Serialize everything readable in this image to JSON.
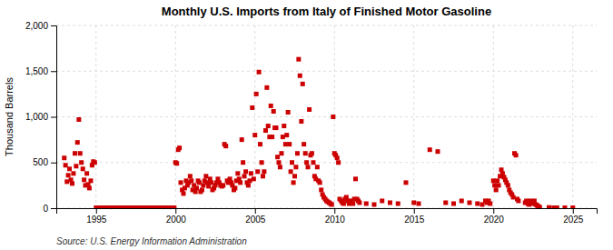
{
  "chart_data": {
    "type": "scatter",
    "title": "Monthly U.S. Imports from Italy of Finished Motor Gasoline",
    "y_label": "Thousand Barrels",
    "annotations": [
      "Source: U.S. Energy Information Administration"
    ],
    "color": "#cc0000",
    "marker": "square",
    "grid": true,
    "xlim": [
      1992.5,
      2026.5
    ],
    "ylim": [
      0,
      2000
    ],
    "xticks": [
      1995,
      2000,
      2005,
      2010,
      2015,
      2020,
      2025
    ],
    "yticks": [
      0,
      500,
      {
        "value": 1000,
        "label": "1,000"
      },
      {
        "value": 1500,
        "label": "1,500"
      },
      {
        "value": 2000,
        "label": "2,000"
      }
    ],
    "x": [
      1993.0,
      1993.08,
      1993.17,
      1993.25,
      1993.33,
      1993.42,
      1993.5,
      1993.58,
      1993.67,
      1993.75,
      1993.83,
      1993.92,
      1994.0,
      1994.08,
      1994.17,
      1994.25,
      1994.33,
      1994.42,
      1994.5,
      1994.58,
      1994.67,
      1994.75,
      1994.83,
      1994.92,
      1995.0,
      1995.08,
      1995.17,
      1995.25,
      1995.33,
      1995.42,
      1995.5,
      1995.58,
      1995.67,
      1995.75,
      1995.83,
      1995.92,
      1996.0,
      1996.08,
      1996.17,
      1996.25,
      1996.33,
      1996.42,
      1996.5,
      1996.58,
      1996.67,
      1996.75,
      1996.83,
      1996.92,
      1997.0,
      1997.08,
      1997.17,
      1997.25,
      1997.33,
      1997.42,
      1997.5,
      1997.58,
      1997.67,
      1997.75,
      1997.83,
      1997.92,
      1998.0,
      1998.08,
      1998.17,
      1998.25,
      1998.33,
      1998.42,
      1998.5,
      1998.58,
      1998.67,
      1998.75,
      1998.83,
      1998.92,
      1999.0,
      1999.08,
      1999.17,
      1999.25,
      1999.33,
      1999.42,
      1999.5,
      1999.58,
      1999.67,
      1999.75,
      1999.83,
      1999.92,
      2000.0,
      2000.08,
      2000.17,
      2000.25,
      2000.33,
      2000.42,
      2000.5,
      2000.58,
      2000.67,
      2000.75,
      2000.83,
      2000.92,
      2001.0,
      2001.08,
      2001.17,
      2001.25,
      2001.33,
      2001.42,
      2001.5,
      2001.58,
      2001.67,
      2001.75,
      2001.83,
      2001.92,
      2002.0,
      2002.08,
      2002.17,
      2002.25,
      2002.33,
      2002.42,
      2002.5,
      2002.58,
      2002.67,
      2002.75,
      2002.83,
      2002.92,
      2003.0,
      2003.08,
      2003.17,
      2003.25,
      2003.33,
      2003.42,
      2003.5,
      2003.58,
      2003.67,
      2003.75,
      2003.83,
      2003.92,
      2004.0,
      2004.08,
      2004.17,
      2004.25,
      2004.33,
      2004.42,
      2004.5,
      2004.58,
      2004.67,
      2004.75,
      2004.83,
      2004.92,
      2005.0,
      2005.08,
      2005.17,
      2005.25,
      2005.33,
      2005.42,
      2005.5,
      2005.58,
      2005.67,
      2005.75,
      2005.83,
      2005.92,
      2006.0,
      2006.08,
      2006.17,
      2006.25,
      2006.33,
      2006.42,
      2006.5,
      2006.58,
      2006.67,
      2006.75,
      2006.83,
      2006.92,
      2007.0,
      2007.08,
      2007.17,
      2007.25,
      2007.33,
      2007.42,
      2007.5,
      2007.58,
      2007.67,
      2007.75,
      2007.83,
      2007.92,
      2008.0,
      2008.08,
      2008.17,
      2008.25,
      2008.33,
      2008.42,
      2008.5,
      2008.58,
      2008.67,
      2008.75,
      2008.83,
      2008.92,
      2009.0,
      2009.08,
      2009.17,
      2009.25,
      2009.33,
      2009.42,
      2009.5,
      2009.58,
      2009.67,
      2009.75,
      2009.83,
      2009.92,
      2010.0,
      2010.08,
      2010.17,
      2010.25,
      2010.33,
      2010.42,
      2010.5,
      2010.58,
      2010.67,
      2010.75,
      2010.83,
      2010.92,
      2011.0,
      2011.08,
      2011.17,
      2011.25,
      2011.33,
      2011.42,
      2011.5,
      2011.58,
      2012.0,
      2012.5,
      2013.0,
      2013.5,
      2014.0,
      2014.5,
      2015.0,
      2015.3,
      2016.0,
      2016.5,
      2017.0,
      2017.5,
      2018.0,
      2018.5,
      2019.0,
      2019.3,
      2019.5,
      2019.6,
      2019.7,
      2019.8,
      2020.0,
      2020.08,
      2020.17,
      2020.25,
      2020.33,
      2020.42,
      2020.5,
      2020.58,
      2020.67,
      2020.75,
      2020.83,
      2020.92,
      2021.0,
      2021.08,
      2021.17,
      2021.25,
      2021.33,
      2021.42,
      2021.5,
      2021.58,
      2022.0,
      2022.08,
      2022.17,
      2022.25,
      2022.33,
      2022.42,
      2022.5,
      2022.58,
      2022.67,
      2022.75,
      2022.83,
      2022.92,
      2023.5,
      2023.8,
      2024.0,
      2024.5,
      2025.0
    ],
    "values": [
      550,
      470,
      290,
      360,
      430,
      310,
      270,
      380,
      600,
      460,
      720,
      970,
      600,
      500,
      430,
      310,
      250,
      380,
      260,
      220,
      300,
      470,
      510,
      500,
      5,
      5,
      5,
      5,
      5,
      5,
      5,
      5,
      5,
      5,
      5,
      5,
      5,
      5,
      5,
      5,
      5,
      5,
      5,
      5,
      5,
      5,
      5,
      5,
      5,
      5,
      5,
      5,
      5,
      5,
      5,
      5,
      5,
      5,
      5,
      5,
      5,
      5,
      5,
      5,
      5,
      5,
      5,
      5,
      5,
      5,
      5,
      5,
      5,
      5,
      5,
      5,
      5,
      5,
      5,
      5,
      5,
      5,
      5,
      5,
      500,
      490,
      640,
      660,
      280,
      200,
      160,
      220,
      300,
      250,
      280,
      350,
      300,
      200,
      250,
      180,
      220,
      300,
      280,
      180,
      200,
      250,
      300,
      350,
      280,
      240,
      320,
      280,
      200,
      220,
      250,
      280,
      320,
      280,
      250,
      240,
      250,
      700,
      680,
      300,
      280,
      320,
      280,
      250,
      200,
      220,
      300,
      380,
      320,
      280,
      750,
      500,
      350,
      400,
      280,
      250,
      300,
      380,
      1100,
      320,
      800,
      1250,
      400,
      1490,
      700,
      500,
      350,
      400,
      850,
      1320,
      900,
      780,
      1120,
      780,
      1060,
      880,
      880,
      560,
      500,
      450,
      600,
      780,
      900,
      700,
      800,
      1050,
      700,
      400,
      500,
      280,
      350,
      450,
      600,
      1630,
      1450,
      950,
      1360,
      700,
      600,
      500,
      450,
      1080,
      580,
      600,
      500,
      350,
      320,
      450,
      300,
      280,
      200,
      150,
      120,
      100,
      80,
      70,
      60,
      50,
      40,
      1000,
      600,
      580,
      550,
      500,
      100,
      80,
      60,
      50,
      100,
      120,
      80,
      50,
      80,
      60,
      50,
      100,
      320,
      100,
      80,
      60,
      50,
      40,
      80,
      60,
      50,
      280,
      60,
      50,
      640,
      620,
      60,
      50,
      80,
      60,
      50,
      40,
      80,
      60,
      80,
      50,
      300,
      250,
      200,
      300,
      250,
      350,
      420,
      380,
      340,
      310,
      280,
      250,
      200,
      170,
      150,
      120,
      600,
      580,
      100,
      80,
      60,
      80,
      50,
      40,
      80,
      60,
      50,
      80,
      40,
      30,
      20,
      10,
      8,
      5,
      5,
      5,
      5
    ]
  }
}
